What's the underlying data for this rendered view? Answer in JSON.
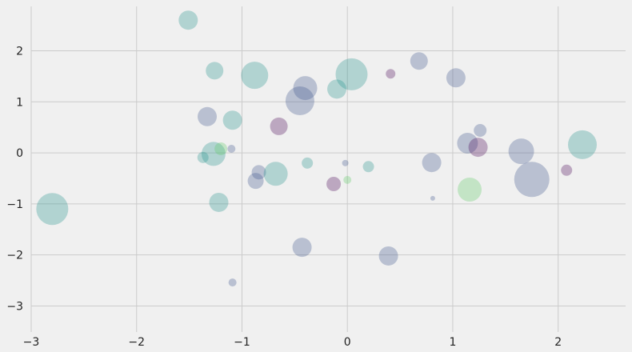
{
  "chart_data": {
    "type": "scatter",
    "title": "",
    "xlabel": "",
    "ylabel": "",
    "xlim": [
      -3.0,
      2.64
    ],
    "ylim": [
      -3.51,
      2.87
    ],
    "grid": true,
    "background": "#f0f0f0",
    "palette": [
      "#440154",
      "#3b528b",
      "#21918c",
      "#5ec962"
    ],
    "opacity": 0.3,
    "xticks": [
      -3,
      -2,
      -1,
      0,
      1,
      2
    ],
    "yticks": [
      -3,
      -2,
      -1,
      0,
      1,
      2
    ],
    "xtick_labels": [
      "−3",
      "−2",
      "−1",
      "0",
      "1",
      "2"
    ],
    "ytick_labels": [
      "−3",
      "−2",
      "−1",
      "0",
      "1",
      "2"
    ],
    "points": [
      {
        "x": -1.51,
        "y": 2.6,
        "size": 12,
        "c": 2
      },
      {
        "x": -1.26,
        "y": 1.61,
        "size": 11,
        "c": 2
      },
      {
        "x": -0.88,
        "y": 1.52,
        "size": 17,
        "c": 2
      },
      {
        "x": -0.4,
        "y": 1.27,
        "size": 15,
        "c": 1
      },
      {
        "x": -0.45,
        "y": 1.02,
        "size": 18,
        "c": 1
      },
      {
        "x": -0.1,
        "y": 1.25,
        "size": 12,
        "c": 2
      },
      {
        "x": 0.04,
        "y": 1.54,
        "size": 20,
        "c": 2
      },
      {
        "x": 0.41,
        "y": 1.55,
        "size": 6,
        "c": 0
      },
      {
        "x": 0.68,
        "y": 1.8,
        "size": 11,
        "c": 1
      },
      {
        "x": 1.03,
        "y": 1.47,
        "size": 12,
        "c": 1
      },
      {
        "x": -1.33,
        "y": 0.71,
        "size": 12,
        "c": 1
      },
      {
        "x": -1.09,
        "y": 0.64,
        "size": 12,
        "c": 2
      },
      {
        "x": -0.65,
        "y": 0.52,
        "size": 11,
        "c": 0
      },
      {
        "x": 1.26,
        "y": 0.44,
        "size": 8,
        "c": 1
      },
      {
        "x": 1.14,
        "y": 0.19,
        "size": 13,
        "c": 1
      },
      {
        "x": 1.24,
        "y": 0.11,
        "size": 12,
        "c": 0
      },
      {
        "x": 1.65,
        "y": 0.03,
        "size": 16,
        "c": 1
      },
      {
        "x": 2.23,
        "y": 0.16,
        "size": 18,
        "c": 2
      },
      {
        "x": -1.37,
        "y": -0.09,
        "size": 7,
        "c": 2
      },
      {
        "x": -1.27,
        "y": -0.02,
        "size": 15,
        "c": 2
      },
      {
        "x": -1.2,
        "y": 0.08,
        "size": 8,
        "c": 3
      },
      {
        "x": -1.1,
        "y": 0.08,
        "size": 5,
        "c": 1
      },
      {
        "x": -0.38,
        "y": -0.2,
        "size": 7,
        "c": 2
      },
      {
        "x": -0.02,
        "y": -0.2,
        "size": 4,
        "c": 1
      },
      {
        "x": 0.2,
        "y": -0.27,
        "size": 7,
        "c": 2
      },
      {
        "x": 0.8,
        "y": -0.19,
        "size": 12,
        "c": 1
      },
      {
        "x": 1.75,
        "y": -0.52,
        "size": 22,
        "c": 1
      },
      {
        "x": 2.08,
        "y": -0.34,
        "size": 7,
        "c": 0
      },
      {
        "x": -0.84,
        "y": -0.38,
        "size": 9,
        "c": 1
      },
      {
        "x": -0.87,
        "y": -0.55,
        "size": 10,
        "c": 1
      },
      {
        "x": -0.68,
        "y": -0.41,
        "size": 15,
        "c": 2
      },
      {
        "x": -0.13,
        "y": -0.61,
        "size": 9,
        "c": 0
      },
      {
        "x": 0.0,
        "y": -0.53,
        "size": 5,
        "c": 3
      },
      {
        "x": 0.81,
        "y": -0.89,
        "size": 3,
        "c": 1
      },
      {
        "x": 1.16,
        "y": -0.72,
        "size": 15,
        "c": 3
      },
      {
        "x": -2.8,
        "y": -1.1,
        "size": 20,
        "c": 2
      },
      {
        "x": -1.22,
        "y": -0.97,
        "size": 12,
        "c": 2
      },
      {
        "x": -0.43,
        "y": -1.85,
        "size": 12,
        "c": 1
      },
      {
        "x": 0.39,
        "y": -2.02,
        "size": 12,
        "c": 1
      },
      {
        "x": -1.09,
        "y": -2.54,
        "size": 5,
        "c": 1
      }
    ]
  }
}
